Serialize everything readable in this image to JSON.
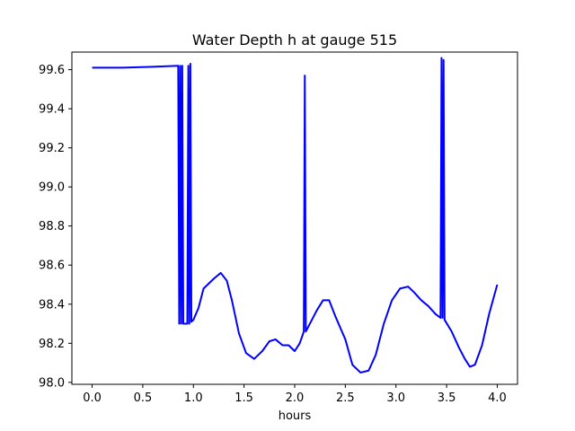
{
  "chart_data": {
    "type": "line",
    "title": "Water Depth h at gauge 515",
    "xlabel": "hours",
    "ylabel": "",
    "xlim": [
      -0.2,
      4.2
    ],
    "ylim": [
      97.99,
      99.69
    ],
    "x_ticks": [
      0.0,
      0.5,
      1.0,
      1.5,
      2.0,
      2.5,
      3.0,
      3.5,
      4.0
    ],
    "x_tick_labels": [
      "0.0",
      "0.5",
      "1.0",
      "1.5",
      "2.0",
      "2.5",
      "3.0",
      "3.5",
      "4.0"
    ],
    "y_ticks": [
      98.0,
      98.2,
      98.4,
      98.6,
      98.8,
      99.0,
      99.2,
      99.4,
      99.6
    ],
    "y_tick_labels": [
      "98.0",
      "98.2",
      "98.4",
      "98.6",
      "98.8",
      "99.0",
      "99.2",
      "99.4",
      "99.6"
    ],
    "grid": false,
    "legend": "none",
    "series": [
      {
        "color": "#0000ff",
        "x": [
          0.0,
          0.3,
          0.6,
          0.85,
          0.86,
          0.87,
          0.88,
          0.89,
          0.9,
          0.92,
          0.94,
          0.95,
          0.96,
          0.97,
          0.98,
          1.0,
          1.05,
          1.1,
          1.2,
          1.27,
          1.33,
          1.38,
          1.45,
          1.52,
          1.6,
          1.68,
          1.75,
          1.81,
          1.88,
          1.94,
          2.0,
          2.05,
          2.09,
          2.1,
          2.11,
          2.12,
          2.16,
          2.22,
          2.28,
          2.34,
          2.4,
          2.5,
          2.57,
          2.65,
          2.73,
          2.8,
          2.88,
          2.96,
          3.04,
          3.12,
          3.18,
          3.25,
          3.32,
          3.39,
          3.44,
          3.45,
          3.46,
          3.47,
          3.48,
          3.55,
          3.62,
          3.68,
          3.73,
          3.78,
          3.85,
          3.92,
          4.0
        ],
        "y": [
          99.61,
          99.61,
          99.615,
          99.62,
          98.3,
          99.62,
          98.3,
          99.62,
          98.3,
          98.3,
          98.3,
          99.62,
          98.3,
          99.63,
          98.31,
          98.32,
          98.38,
          98.48,
          98.53,
          98.56,
          98.52,
          98.42,
          98.25,
          98.15,
          98.12,
          98.16,
          98.21,
          98.22,
          98.19,
          98.19,
          98.16,
          98.2,
          98.26,
          99.57,
          98.26,
          98.27,
          98.31,
          98.37,
          98.42,
          98.42,
          98.34,
          98.22,
          98.09,
          98.05,
          98.06,
          98.14,
          98.3,
          98.42,
          98.48,
          98.49,
          98.46,
          98.42,
          98.39,
          98.35,
          98.33,
          99.66,
          98.33,
          99.65,
          98.32,
          98.26,
          98.18,
          98.12,
          98.08,
          98.09,
          98.19,
          98.35,
          98.5
        ]
      }
    ]
  }
}
